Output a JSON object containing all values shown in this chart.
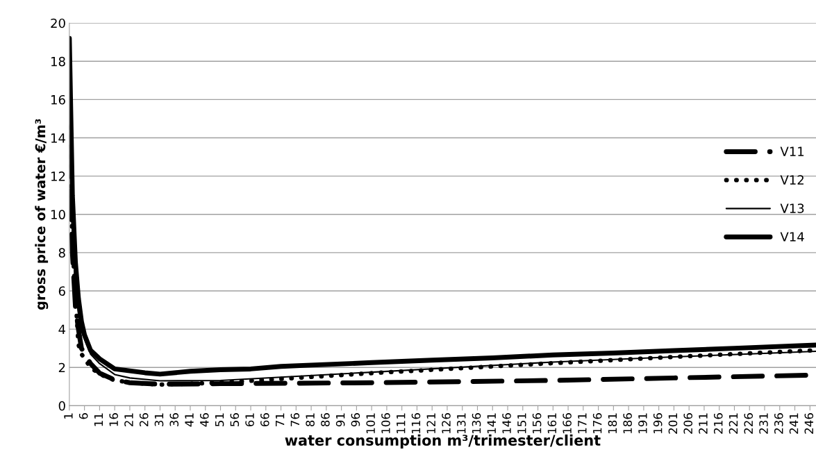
{
  "chart_data": {
    "type": "line",
    "xlabel": "water consumption m³/trimester/client",
    "ylabel": "gross price of water €/m³",
    "xlim": [
      1,
      248
    ],
    "xticks": [
      1,
      6,
      11,
      16,
      21,
      26,
      31,
      36,
      41,
      46,
      51,
      56,
      61,
      66,
      71,
      76,
      81,
      86,
      91,
      96,
      101,
      106,
      111,
      116,
      121,
      126,
      131,
      136,
      141,
      146,
      151,
      156,
      161,
      166,
      171,
      176,
      181,
      186,
      191,
      196,
      201,
      206,
      211,
      216,
      221,
      226,
      231,
      236,
      241,
      246
    ],
    "ylim": [
      0,
      20
    ],
    "yticks": [
      0,
      2,
      4,
      6,
      8,
      10,
      12,
      14,
      16,
      18,
      20
    ],
    "grid": "y",
    "legend": "right",
    "series": [
      {
        "name": "V11",
        "color": "#000000",
        "line_style": "dashed",
        "x": [
          1,
          2,
          3,
          4,
          5,
          8,
          11,
          16,
          21,
          31,
          51,
          101,
          161,
          201,
          248
        ],
        "values": [
          13.5,
          8,
          5.2,
          4,
          3,
          2.2,
          1.7,
          1.35,
          1.2,
          1.12,
          1.15,
          1.2,
          1.32,
          1.45,
          1.6
        ]
      },
      {
        "name": "V12",
        "color": "#000000",
        "line_style": "dotted",
        "x": [
          1,
          2,
          3,
          4,
          5,
          8,
          11,
          14,
          16,
          21,
          26,
          31,
          41,
          51,
          101,
          157,
          201,
          248
        ],
        "values": [
          14.6,
          8.5,
          5.8,
          3.2,
          2.7,
          2,
          1.65,
          1.45,
          1.32,
          1.22,
          1.15,
          1.1,
          1.15,
          1.2,
          1.7,
          2.19,
          2.55,
          2.9
        ]
      },
      {
        "name": "V13",
        "color": "#000000",
        "line_style": "solid",
        "x": [
          1,
          2,
          3,
          4,
          5,
          8,
          11,
          16,
          21,
          31,
          51,
          101,
          161,
          201,
          248
        ],
        "values": [
          14.6,
          9,
          6.2,
          4.8,
          3.9,
          2.7,
          2.2,
          1.63,
          1.45,
          1.3,
          1.32,
          1.75,
          2.28,
          2.55,
          2.84
        ]
      },
      {
        "name": "V14",
        "color": "#000000",
        "line_style": "solid",
        "x": [
          1,
          2,
          3,
          4,
          5,
          6,
          8,
          11,
          16,
          21,
          26,
          31,
          41,
          51,
          61,
          71,
          81,
          101,
          121,
          141,
          161,
          181,
          201,
          221,
          248
        ],
        "values": [
          19.2,
          11,
          7.5,
          5.6,
          4.4,
          3.7,
          2.9,
          2.45,
          1.92,
          1.82,
          1.72,
          1.65,
          1.8,
          1.88,
          1.92,
          2.05,
          2.12,
          2.25,
          2.38,
          2.5,
          2.65,
          2.75,
          2.88,
          3.0,
          3.17
        ]
      }
    ]
  }
}
